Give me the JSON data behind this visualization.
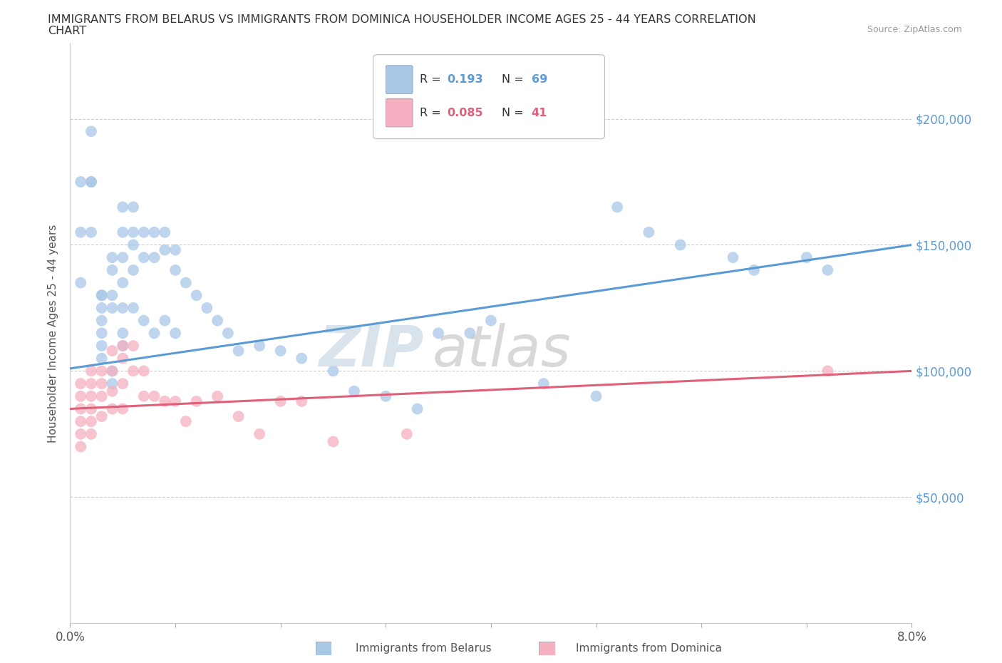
{
  "title_line1": "IMMIGRANTS FROM BELARUS VS IMMIGRANTS FROM DOMINICA HOUSEHOLDER INCOME AGES 25 - 44 YEARS CORRELATION",
  "title_line2": "CHART",
  "source_text": "Source: ZipAtlas.com",
  "ylabel": "Householder Income Ages 25 - 44 years",
  "xlim": [
    0.0,
    0.08
  ],
  "ylim": [
    0,
    230000
  ],
  "yticks": [
    0,
    50000,
    100000,
    150000,
    200000
  ],
  "ytick_labels": [
    "",
    "$50,000",
    "$100,000",
    "$150,000",
    "$200,000"
  ],
  "xticks": [
    0.0,
    0.01,
    0.02,
    0.03,
    0.04,
    0.05,
    0.06,
    0.07,
    0.08
  ],
  "xtick_labels": [
    "0.0%",
    "",
    "",
    "",
    "",
    "",
    "",
    "",
    "8.0%"
  ],
  "belarus_color": "#a8c8e8",
  "dominica_color": "#f4afc0",
  "belarus_line_color": "#5b9bd5",
  "dominica_line_color": "#e0607a",
  "belarus_R": 0.193,
  "belarus_N": 69,
  "dominica_R": 0.085,
  "dominica_N": 41,
  "legend_value_color": "#5b9bd5",
  "legend_dominica_value_color": "#e0607a",
  "belarus_line_x0": 0.0,
  "belarus_line_y0": 101000,
  "belarus_line_x1": 0.08,
  "belarus_line_y1": 150000,
  "dominica_line_x0": 0.0,
  "dominica_line_y0": 85000,
  "dominica_line_x1": 0.08,
  "dominica_line_y1": 100000,
  "belarus_scatter_x": [
    0.001,
    0.001,
    0.001,
    0.002,
    0.002,
    0.002,
    0.002,
    0.003,
    0.003,
    0.003,
    0.003,
    0.003,
    0.003,
    0.004,
    0.004,
    0.004,
    0.004,
    0.005,
    0.005,
    0.005,
    0.005,
    0.005,
    0.006,
    0.006,
    0.006,
    0.006,
    0.007,
    0.007,
    0.008,
    0.008,
    0.009,
    0.009,
    0.01,
    0.01,
    0.011,
    0.012,
    0.013,
    0.014,
    0.015,
    0.016,
    0.018,
    0.02,
    0.022,
    0.025,
    0.027,
    0.03,
    0.033,
    0.035,
    0.038,
    0.04,
    0.045,
    0.05,
    0.052,
    0.055,
    0.058,
    0.063,
    0.065,
    0.07,
    0.072,
    0.003,
    0.004,
    0.004,
    0.005,
    0.005,
    0.006,
    0.007,
    0.008,
    0.009,
    0.01
  ],
  "belarus_scatter_y": [
    135000,
    155000,
    175000,
    155000,
    175000,
    195000,
    175000,
    130000,
    130000,
    125000,
    120000,
    115000,
    110000,
    145000,
    140000,
    130000,
    125000,
    165000,
    155000,
    145000,
    135000,
    125000,
    165000,
    155000,
    150000,
    140000,
    155000,
    145000,
    155000,
    145000,
    155000,
    148000,
    148000,
    140000,
    135000,
    130000,
    125000,
    120000,
    115000,
    108000,
    110000,
    108000,
    105000,
    100000,
    92000,
    90000,
    85000,
    115000,
    115000,
    120000,
    95000,
    90000,
    165000,
    155000,
    150000,
    145000,
    140000,
    145000,
    140000,
    105000,
    100000,
    95000,
    115000,
    110000,
    125000,
    120000,
    115000,
    120000,
    115000
  ],
  "dominica_scatter_x": [
    0.001,
    0.001,
    0.001,
    0.001,
    0.001,
    0.001,
    0.002,
    0.002,
    0.002,
    0.002,
    0.002,
    0.002,
    0.003,
    0.003,
    0.003,
    0.003,
    0.004,
    0.004,
    0.004,
    0.004,
    0.005,
    0.005,
    0.005,
    0.005,
    0.006,
    0.006,
    0.007,
    0.007,
    0.008,
    0.009,
    0.01,
    0.011,
    0.012,
    0.014,
    0.016,
    0.018,
    0.02,
    0.022,
    0.025,
    0.032,
    0.072
  ],
  "dominica_scatter_y": [
    95000,
    90000,
    85000,
    80000,
    75000,
    70000,
    100000,
    95000,
    90000,
    85000,
    80000,
    75000,
    100000,
    95000,
    90000,
    82000,
    108000,
    100000,
    92000,
    85000,
    110000,
    105000,
    95000,
    85000,
    110000,
    100000,
    100000,
    90000,
    90000,
    88000,
    88000,
    80000,
    88000,
    90000,
    82000,
    75000,
    88000,
    88000,
    72000,
    75000,
    100000
  ]
}
